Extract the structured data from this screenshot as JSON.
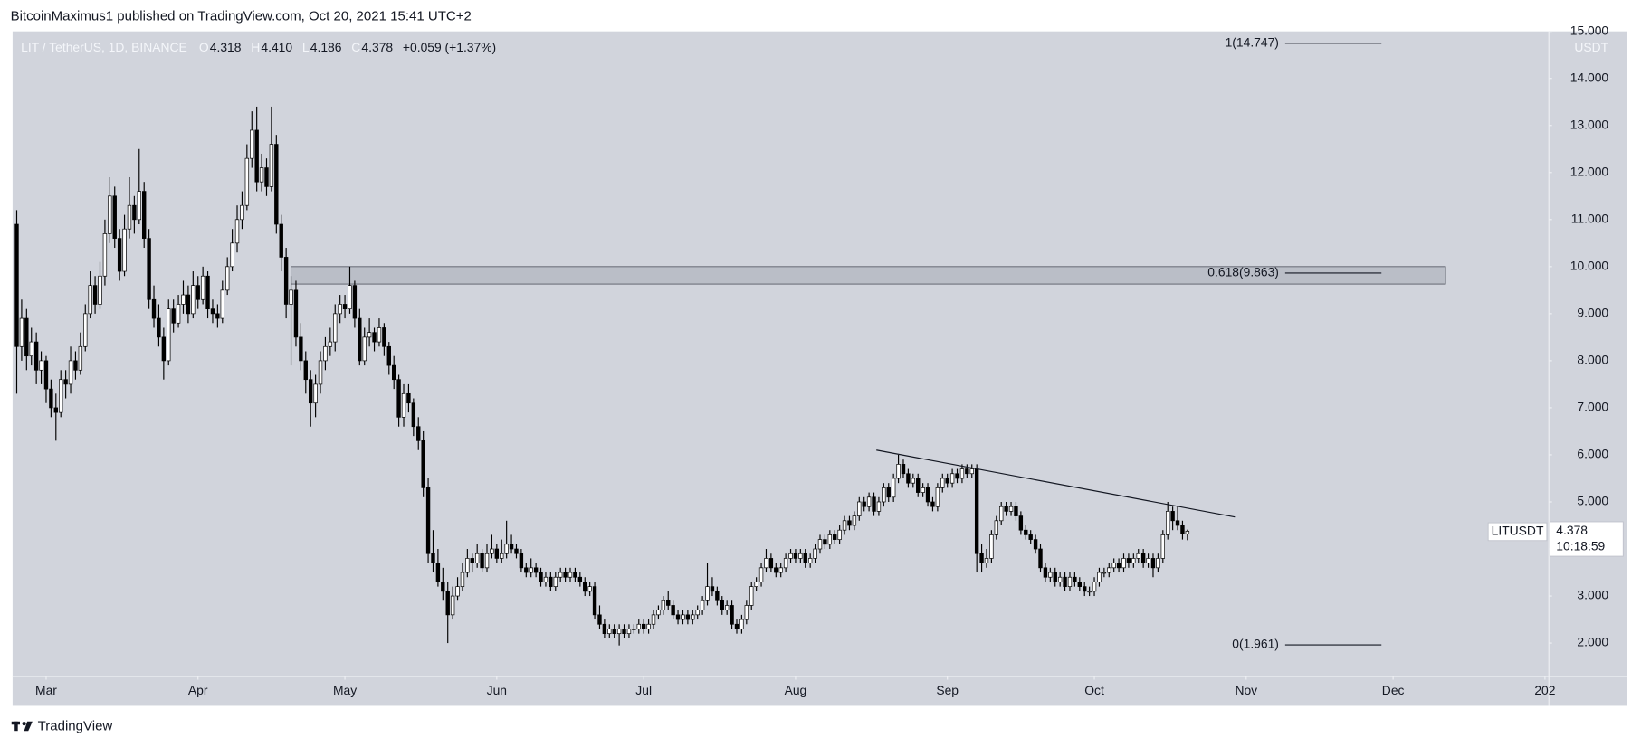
{
  "header": "BitcoinMaximus1 published on TradingView.com, Oct 20, 2021 15:41 UTC+2",
  "footer": "TradingView",
  "chart_data": {
    "type": "candlestick",
    "symbol": "LIT / TetherUS, 1D, BINANCE",
    "legend_labels": [
      "O",
      "H",
      "L",
      "C"
    ],
    "last_labels": [
      "4.318",
      "4.410",
      "4.186",
      "4.378"
    ],
    "change": "+0.059 (+1.37%)",
    "y_unit": "USDT",
    "price_tag": {
      "symbol": "LITUSDT",
      "countdown": "10:18:59"
    },
    "up_color": "#ffffff",
    "down_color": "#000000",
    "xlim": [
      -0.85,
      312.8
    ],
    "xticks": [
      {
        "value": 6,
        "label": "Mar"
      },
      {
        "value": 37,
        "label": "Apr"
      },
      {
        "value": 67,
        "label": "May"
      },
      {
        "value": 98,
        "label": "Jun"
      },
      {
        "value": 128,
        "label": "Jul"
      },
      {
        "value": 159,
        "label": "Aug"
      },
      {
        "value": 190,
        "label": "Sep"
      },
      {
        "value": 220,
        "label": "Oct"
      },
      {
        "value": 251,
        "label": "Nov"
      },
      {
        "value": 281,
        "label": "Dec"
      },
      {
        "value": 312,
        "label": "202"
      }
    ],
    "ylim": [
      1.289,
      15
    ],
    "yticks": [
      {
        "value": 2,
        "label": "2.000"
      },
      {
        "value": 3,
        "label": "3.000"
      },
      {
        "value": 4,
        "label": "4.000"
      },
      {
        "value": 5,
        "label": "5.000"
      },
      {
        "value": 6,
        "label": "6.000"
      },
      {
        "value": 7,
        "label": "7.000"
      },
      {
        "value": 8,
        "label": "8.000"
      },
      {
        "value": 9,
        "label": "9.000"
      },
      {
        "value": 10,
        "label": "10.000"
      },
      {
        "value": 11,
        "label": "11.000"
      },
      {
        "value": 12,
        "label": "12.000"
      },
      {
        "value": 13,
        "label": "13.000"
      },
      {
        "value": 14,
        "label": "14.000"
      },
      {
        "value": 15,
        "label": "15.000"
      }
    ],
    "fib_levels": [
      {
        "value": 14.747,
        "label": "1(14.747)"
      },
      {
        "value": 9.863,
        "label": "0.618(9.863)"
      },
      {
        "value": 1.961,
        "label": "0(1.961)"
      }
    ],
    "zone": {
      "x": [
        56,
        291.7
      ],
      "y": [
        9.63,
        10.0
      ]
    },
    "trendline": {
      "x": [
        175.5,
        248.7
      ],
      "y": [
        6.1,
        4.68
      ]
    },
    "ohlc": [
      [
        10.9,
        11.2,
        7.3,
        8.3
      ],
      [
        8.3,
        9.3,
        8.0,
        8.9
      ],
      [
        8.9,
        9.1,
        7.8,
        8.1
      ],
      [
        8.1,
        8.7,
        7.9,
        8.4
      ],
      [
        8.4,
        8.6,
        7.5,
        7.8
      ],
      [
        7.8,
        8.2,
        7.5,
        8.0
      ],
      [
        8.0,
        8.1,
        7.1,
        7.4
      ],
      [
        7.4,
        7.6,
        6.8,
        7.0
      ],
      [
        7.0,
        7.3,
        6.3,
        6.9
      ],
      [
        6.9,
        7.8,
        6.8,
        7.6
      ],
      [
        7.6,
        7.8,
        7.2,
        7.5
      ],
      [
        7.5,
        8.3,
        7.3,
        8.0
      ],
      [
        8.0,
        8.2,
        7.6,
        7.8
      ],
      [
        7.8,
        8.6,
        7.7,
        8.3
      ],
      [
        8.3,
        9.2,
        8.2,
        9.0
      ],
      [
        9.0,
        9.9,
        8.9,
        9.6
      ],
      [
        9.6,
        9.8,
        9.0,
        9.2
      ],
      [
        9.2,
        10.1,
        9.1,
        9.8
      ],
      [
        9.8,
        11.0,
        9.6,
        10.7
      ],
      [
        10.7,
        11.9,
        10.5,
        11.5
      ],
      [
        11.5,
        11.7,
        10.4,
        10.6
      ],
      [
        10.6,
        10.8,
        9.7,
        9.9
      ],
      [
        9.9,
        11.1,
        9.8,
        10.8
      ],
      [
        10.8,
        11.9,
        10.6,
        11.3
      ],
      [
        11.3,
        11.5,
        10.7,
        11.0
      ],
      [
        11.0,
        12.5,
        10.9,
        11.6
      ],
      [
        11.6,
        11.8,
        10.4,
        10.6
      ],
      [
        10.6,
        10.8,
        9.1,
        9.3
      ],
      [
        9.3,
        9.6,
        8.7,
        8.9
      ],
      [
        8.9,
        9.2,
        8.3,
        8.5
      ],
      [
        8.5,
        8.7,
        7.6,
        8.0
      ],
      [
        8.0,
        9.3,
        7.9,
        9.1
      ],
      [
        9.1,
        9.3,
        8.6,
        8.8
      ],
      [
        8.8,
        9.4,
        8.7,
        9.2
      ],
      [
        9.2,
        9.7,
        9.0,
        9.4
      ],
      [
        9.4,
        9.6,
        8.8,
        9.0
      ],
      [
        9.0,
        9.9,
        8.9,
        9.6
      ],
      [
        9.6,
        9.8,
        9.1,
        9.3
      ],
      [
        9.3,
        10.0,
        9.2,
        9.8
      ],
      [
        9.8,
        9.9,
        8.9,
        9.1
      ],
      [
        9.1,
        9.3,
        8.8,
        9.0
      ],
      [
        9.0,
        9.2,
        8.7,
        8.9
      ],
      [
        8.9,
        9.7,
        8.8,
        9.5
      ],
      [
        9.5,
        10.2,
        9.4,
        10.0
      ],
      [
        10.0,
        10.8,
        9.9,
        10.5
      ],
      [
        10.5,
        11.3,
        10.3,
        11.0
      ],
      [
        11.0,
        11.6,
        10.8,
        11.3
      ],
      [
        11.3,
        12.6,
        11.2,
        12.3
      ],
      [
        12.3,
        13.3,
        12.1,
        12.9
      ],
      [
        12.9,
        13.4,
        11.6,
        11.8
      ],
      [
        11.8,
        12.4,
        11.6,
        12.1
      ],
      [
        12.1,
        12.3,
        11.5,
        11.7
      ],
      [
        11.7,
        13.4,
        11.6,
        12.6
      ],
      [
        12.6,
        12.8,
        10.7,
        10.9
      ],
      [
        10.9,
        11.1,
        9.9,
        10.2
      ],
      [
        10.2,
        10.4,
        8.9,
        9.2
      ],
      [
        9.2,
        9.8,
        7.9,
        9.5
      ],
      [
        9.5,
        9.7,
        8.3,
        8.5
      ],
      [
        8.5,
        8.8,
        7.8,
        8.0
      ],
      [
        8.0,
        8.2,
        7.3,
        7.6
      ],
      [
        7.6,
        7.8,
        6.6,
        7.1
      ],
      [
        7.1,
        7.7,
        6.8,
        7.5
      ],
      [
        7.5,
        8.2,
        7.3,
        8.0
      ],
      [
        8.0,
        8.5,
        7.8,
        8.3
      ],
      [
        8.3,
        8.7,
        8.1,
        8.4
      ],
      [
        8.4,
        9.2,
        8.2,
        9.0
      ],
      [
        9.0,
        9.4,
        8.8,
        9.2
      ],
      [
        9.2,
        9.4,
        8.9,
        9.1
      ],
      [
        9.1,
        10.0,
        9.0,
        9.6
      ],
      [
        9.6,
        9.7,
        8.7,
        8.9
      ],
      [
        8.9,
        9.1,
        7.9,
        8.0
      ],
      [
        8.0,
        8.7,
        7.9,
        8.5
      ],
      [
        8.5,
        8.9,
        8.3,
        8.6
      ],
      [
        8.6,
        8.7,
        8.2,
        8.4
      ],
      [
        8.4,
        8.9,
        8.3,
        8.7
      ],
      [
        8.7,
        8.8,
        8.1,
        8.3
      ],
      [
        8.3,
        8.4,
        7.7,
        7.9
      ],
      [
        7.9,
        8.1,
        7.4,
        7.6
      ],
      [
        7.6,
        7.7,
        6.6,
        6.8
      ],
      [
        6.8,
        7.5,
        6.6,
        7.3
      ],
      [
        7.3,
        7.5,
        6.9,
        7.1
      ],
      [
        7.1,
        7.2,
        6.4,
        6.6
      ],
      [
        6.6,
        6.8,
        6.1,
        6.3
      ],
      [
        6.3,
        6.5,
        5.1,
        5.3
      ],
      [
        5.3,
        5.5,
        3.7,
        3.9
      ],
      [
        3.9,
        4.4,
        3.5,
        3.7
      ],
      [
        3.7,
        4.0,
        3.2,
        3.3
      ],
      [
        3.3,
        3.6,
        2.9,
        3.1
      ],
      [
        3.1,
        3.3,
        2.0,
        2.6
      ],
      [
        2.6,
        3.2,
        2.5,
        3.0
      ],
      [
        3.0,
        3.4,
        2.9,
        3.2
      ],
      [
        3.2,
        3.7,
        3.1,
        3.5
      ],
      [
        3.5,
        4.0,
        3.4,
        3.8
      ],
      [
        3.8,
        3.9,
        3.5,
        3.7
      ],
      [
        3.7,
        4.1,
        3.6,
        3.9
      ],
      [
        3.9,
        4.0,
        3.5,
        3.6
      ],
      [
        3.6,
        4.1,
        3.5,
        3.9
      ],
      [
        3.9,
        4.3,
        3.8,
        4.0
      ],
      [
        4.0,
        4.1,
        3.7,
        3.8
      ],
      [
        3.8,
        4.2,
        3.7,
        3.9
      ],
      [
        3.9,
        4.6,
        3.8,
        4.1
      ],
      [
        4.1,
        4.3,
        3.9,
        4.0
      ],
      [
        4.0,
        4.1,
        3.8,
        3.9
      ],
      [
        3.9,
        4.0,
        3.5,
        3.6
      ],
      [
        3.6,
        3.7,
        3.4,
        3.5
      ],
      [
        3.5,
        3.8,
        3.4,
        3.6
      ],
      [
        3.6,
        3.7,
        3.4,
        3.5
      ],
      [
        3.5,
        3.6,
        3.2,
        3.3
      ],
      [
        3.3,
        3.5,
        3.2,
        3.4
      ],
      [
        3.4,
        3.5,
        3.1,
        3.2
      ],
      [
        3.2,
        3.5,
        3.1,
        3.4
      ],
      [
        3.4,
        3.6,
        3.3,
        3.5
      ],
      [
        3.5,
        3.6,
        3.3,
        3.4
      ],
      [
        3.4,
        3.6,
        3.3,
        3.5
      ],
      [
        3.5,
        3.6,
        3.3,
        3.4
      ],
      [
        3.4,
        3.5,
        3.2,
        3.3
      ],
      [
        3.3,
        3.4,
        3.0,
        3.1
      ],
      [
        3.1,
        3.3,
        3.0,
        3.2
      ],
      [
        3.2,
        3.3,
        2.5,
        2.6
      ],
      [
        2.6,
        2.8,
        2.3,
        2.4
      ],
      [
        2.4,
        2.5,
        2.1,
        2.2
      ],
      [
        2.2,
        2.4,
        2.1,
        2.3
      ],
      [
        2.3,
        2.4,
        2.1,
        2.2
      ],
      [
        2.2,
        2.4,
        1.95,
        2.3
      ],
      [
        2.3,
        2.4,
        2.1,
        2.2
      ],
      [
        2.2,
        2.4,
        2.1,
        2.3
      ],
      [
        2.3,
        2.4,
        2.2,
        2.3
      ],
      [
        2.3,
        2.5,
        2.2,
        2.4
      ],
      [
        2.4,
        2.5,
        2.2,
        2.3
      ],
      [
        2.3,
        2.5,
        2.2,
        2.4
      ],
      [
        2.4,
        2.7,
        2.3,
        2.6
      ],
      [
        2.6,
        2.8,
        2.5,
        2.7
      ],
      [
        2.7,
        3.0,
        2.6,
        2.9
      ],
      [
        2.9,
        3.1,
        2.7,
        2.8
      ],
      [
        2.8,
        2.9,
        2.5,
        2.6
      ],
      [
        2.6,
        2.7,
        2.4,
        2.5
      ],
      [
        2.5,
        2.7,
        2.4,
        2.6
      ],
      [
        2.6,
        2.7,
        2.4,
        2.5
      ],
      [
        2.5,
        2.7,
        2.4,
        2.6
      ],
      [
        2.6,
        2.8,
        2.5,
        2.7
      ],
      [
        2.7,
        3.0,
        2.6,
        2.9
      ],
      [
        2.9,
        3.7,
        2.8,
        3.2
      ],
      [
        3.2,
        3.4,
        3.0,
        3.1
      ],
      [
        3.1,
        3.2,
        2.8,
        2.9
      ],
      [
        2.9,
        3.0,
        2.6,
        2.7
      ],
      [
        2.7,
        2.9,
        2.6,
        2.8
      ],
      [
        2.8,
        2.9,
        2.3,
        2.4
      ],
      [
        2.4,
        2.5,
        2.2,
        2.3
      ],
      [
        2.3,
        2.6,
        2.2,
        2.5
      ],
      [
        2.5,
        2.9,
        2.4,
        2.8
      ],
      [
        2.8,
        3.3,
        2.7,
        3.2
      ],
      [
        3.2,
        3.4,
        3.1,
        3.3
      ],
      [
        3.3,
        3.7,
        3.2,
        3.6
      ],
      [
        3.6,
        4.0,
        3.5,
        3.8
      ],
      [
        3.8,
        3.9,
        3.5,
        3.6
      ],
      [
        3.6,
        3.7,
        3.4,
        3.5
      ],
      [
        3.5,
        3.7,
        3.4,
        3.6
      ],
      [
        3.6,
        3.9,
        3.5,
        3.8
      ],
      [
        3.8,
        4.0,
        3.7,
        3.9
      ],
      [
        3.9,
        4.0,
        3.7,
        3.8
      ],
      [
        3.8,
        4.0,
        3.7,
        3.9
      ],
      [
        3.9,
        4.0,
        3.6,
        3.7
      ],
      [
        3.7,
        3.9,
        3.6,
        3.8
      ],
      [
        3.8,
        4.1,
        3.7,
        4.0
      ],
      [
        4.0,
        4.3,
        3.9,
        4.2
      ],
      [
        4.2,
        4.3,
        4.0,
        4.1
      ],
      [
        4.1,
        4.4,
        4.0,
        4.3
      ],
      [
        4.3,
        4.4,
        4.1,
        4.2
      ],
      [
        4.2,
        4.5,
        4.1,
        4.4
      ],
      [
        4.4,
        4.7,
        4.3,
        4.6
      ],
      [
        4.6,
        4.7,
        4.4,
        4.5
      ],
      [
        4.5,
        4.8,
        4.4,
        4.7
      ],
      [
        4.7,
        5.1,
        4.6,
        5.0
      ],
      [
        5.0,
        5.1,
        4.8,
        4.9
      ],
      [
        4.9,
        5.2,
        4.8,
        5.1
      ],
      [
        5.1,
        5.2,
        4.7,
        4.8
      ],
      [
        4.8,
        5.1,
        4.7,
        5.0
      ],
      [
        5.0,
        5.4,
        4.9,
        5.3
      ],
      [
        5.3,
        5.4,
        5.0,
        5.1
      ],
      [
        5.1,
        5.6,
        5.0,
        5.5
      ],
      [
        5.5,
        6.0,
        5.4,
        5.8
      ],
      [
        5.8,
        5.9,
        5.5,
        5.6
      ],
      [
        5.6,
        5.7,
        5.3,
        5.4
      ],
      [
        5.4,
        5.6,
        5.3,
        5.5
      ],
      [
        5.5,
        5.6,
        5.1,
        5.2
      ],
      [
        5.2,
        5.4,
        5.1,
        5.3
      ],
      [
        5.3,
        5.4,
        4.9,
        5.0
      ],
      [
        5.0,
        5.1,
        4.8,
        4.9
      ],
      [
        4.9,
        5.4,
        4.8,
        5.3
      ],
      [
        5.3,
        5.6,
        5.2,
        5.5
      ],
      [
        5.5,
        5.6,
        5.3,
        5.4
      ],
      [
        5.4,
        5.7,
        5.3,
        5.6
      ],
      [
        5.6,
        5.7,
        5.4,
        5.5
      ],
      [
        5.5,
        5.8,
        5.4,
        5.7
      ],
      [
        5.7,
        5.8,
        5.5,
        5.6
      ],
      [
        5.6,
        5.8,
        5.5,
        5.7
      ],
      [
        5.7,
        5.8,
        3.5,
        3.9
      ],
      [
        3.9,
        4.1,
        3.5,
        3.7
      ],
      [
        3.7,
        4.0,
        3.6,
        3.8
      ],
      [
        3.8,
        4.4,
        3.7,
        4.3
      ],
      [
        4.3,
        4.7,
        4.2,
        4.6
      ],
      [
        4.6,
        5.0,
        4.5,
        4.9
      ],
      [
        4.9,
        5.0,
        4.7,
        4.8
      ],
      [
        4.8,
        5.0,
        4.7,
        4.9
      ],
      [
        4.9,
        5.0,
        4.6,
        4.7
      ],
      [
        4.7,
        4.8,
        4.3,
        4.4
      ],
      [
        4.4,
        4.5,
        4.2,
        4.3
      ],
      [
        4.3,
        4.4,
        4.1,
        4.2
      ],
      [
        4.2,
        4.3,
        3.9,
        4.0
      ],
      [
        4.0,
        4.1,
        3.5,
        3.6
      ],
      [
        3.6,
        3.7,
        3.3,
        3.4
      ],
      [
        3.4,
        3.6,
        3.3,
        3.5
      ],
      [
        3.5,
        3.6,
        3.2,
        3.3
      ],
      [
        3.3,
        3.5,
        3.2,
        3.4
      ],
      [
        3.4,
        3.5,
        3.1,
        3.2
      ],
      [
        3.2,
        3.5,
        3.1,
        3.4
      ],
      [
        3.4,
        3.5,
        3.2,
        3.3
      ],
      [
        3.3,
        3.4,
        3.1,
        3.2
      ],
      [
        3.2,
        3.3,
        3.0,
        3.1
      ],
      [
        3.1,
        3.2,
        3.0,
        3.1
      ],
      [
        3.1,
        3.4,
        3.0,
        3.3
      ],
      [
        3.3,
        3.6,
        3.2,
        3.5
      ],
      [
        3.5,
        3.6,
        3.4,
        3.5
      ],
      [
        3.5,
        3.7,
        3.4,
        3.6
      ],
      [
        3.6,
        3.8,
        3.5,
        3.7
      ],
      [
        3.7,
        3.8,
        3.5,
        3.6
      ],
      [
        3.6,
        3.9,
        3.5,
        3.8
      ],
      [
        3.8,
        3.9,
        3.6,
        3.7
      ],
      [
        3.7,
        3.9,
        3.6,
        3.8
      ],
      [
        3.8,
        4.0,
        3.7,
        3.9
      ],
      [
        3.9,
        4.0,
        3.6,
        3.7
      ],
      [
        3.7,
        3.9,
        3.6,
        3.8
      ],
      [
        3.8,
        3.9,
        3.4,
        3.6
      ],
      [
        3.6,
        3.9,
        3.5,
        3.8
      ],
      [
        3.8,
        4.4,
        3.7,
        4.3
      ],
      [
        4.3,
        5.0,
        4.2,
        4.8
      ],
      [
        4.8,
        4.9,
        4.4,
        4.6
      ],
      [
        4.6,
        4.9,
        4.4,
        4.5
      ],
      [
        4.5,
        4.6,
        4.2,
        4.318
      ],
      [
        4.318,
        4.41,
        4.186,
        4.378
      ]
    ]
  }
}
